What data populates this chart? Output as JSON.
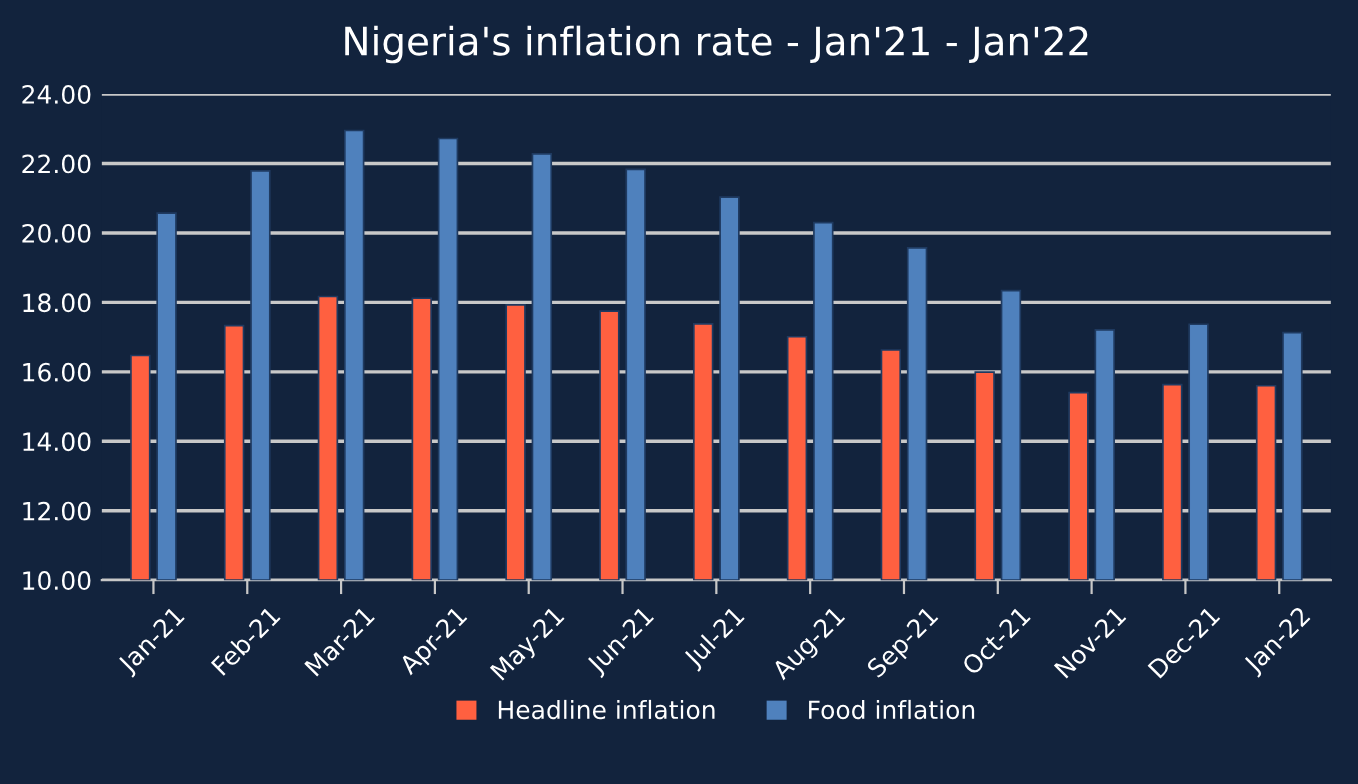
{
  "chart_data": {
    "type": "bar",
    "title": "Nigeria's inflation rate - Jan'21 - Jan'22",
    "categories": [
      "Jan-21",
      "Feb-21",
      "Mar-21",
      "Apr-21",
      "May-21",
      "Jun-21",
      "Jul-21",
      "Aug-21",
      "Sep-21",
      "Oct-21",
      "Nov-21",
      "Dec-21",
      "Jan-22"
    ],
    "series": [
      {
        "name": "Headline inflation",
        "color": "#ff6040",
        "values": [
          16.47,
          17.33,
          18.17,
          18.12,
          17.93,
          17.75,
          17.38,
          17.01,
          16.63,
          15.99,
          15.4,
          15.63,
          15.6
        ]
      },
      {
        "name": "Food inflation",
        "color": "#4f81bd",
        "values": [
          20.57,
          21.79,
          22.95,
          22.72,
          22.28,
          21.83,
          21.03,
          20.3,
          19.57,
          18.34,
          17.21,
          17.37,
          17.13
        ]
      }
    ],
    "ylim": [
      10,
      24
    ],
    "yticks": [
      {
        "value": 10,
        "label": "10.00"
      },
      {
        "value": 12,
        "label": "12.00"
      },
      {
        "value": 14,
        "label": "14.00"
      },
      {
        "value": 16,
        "label": "16.00"
      },
      {
        "value": 18,
        "label": "18.00"
      },
      {
        "value": 20,
        "label": "20.00"
      },
      {
        "value": 22,
        "label": "22.00"
      },
      {
        "value": 24,
        "label": "24.00"
      }
    ],
    "grid": "y",
    "legend": "bottom"
  }
}
